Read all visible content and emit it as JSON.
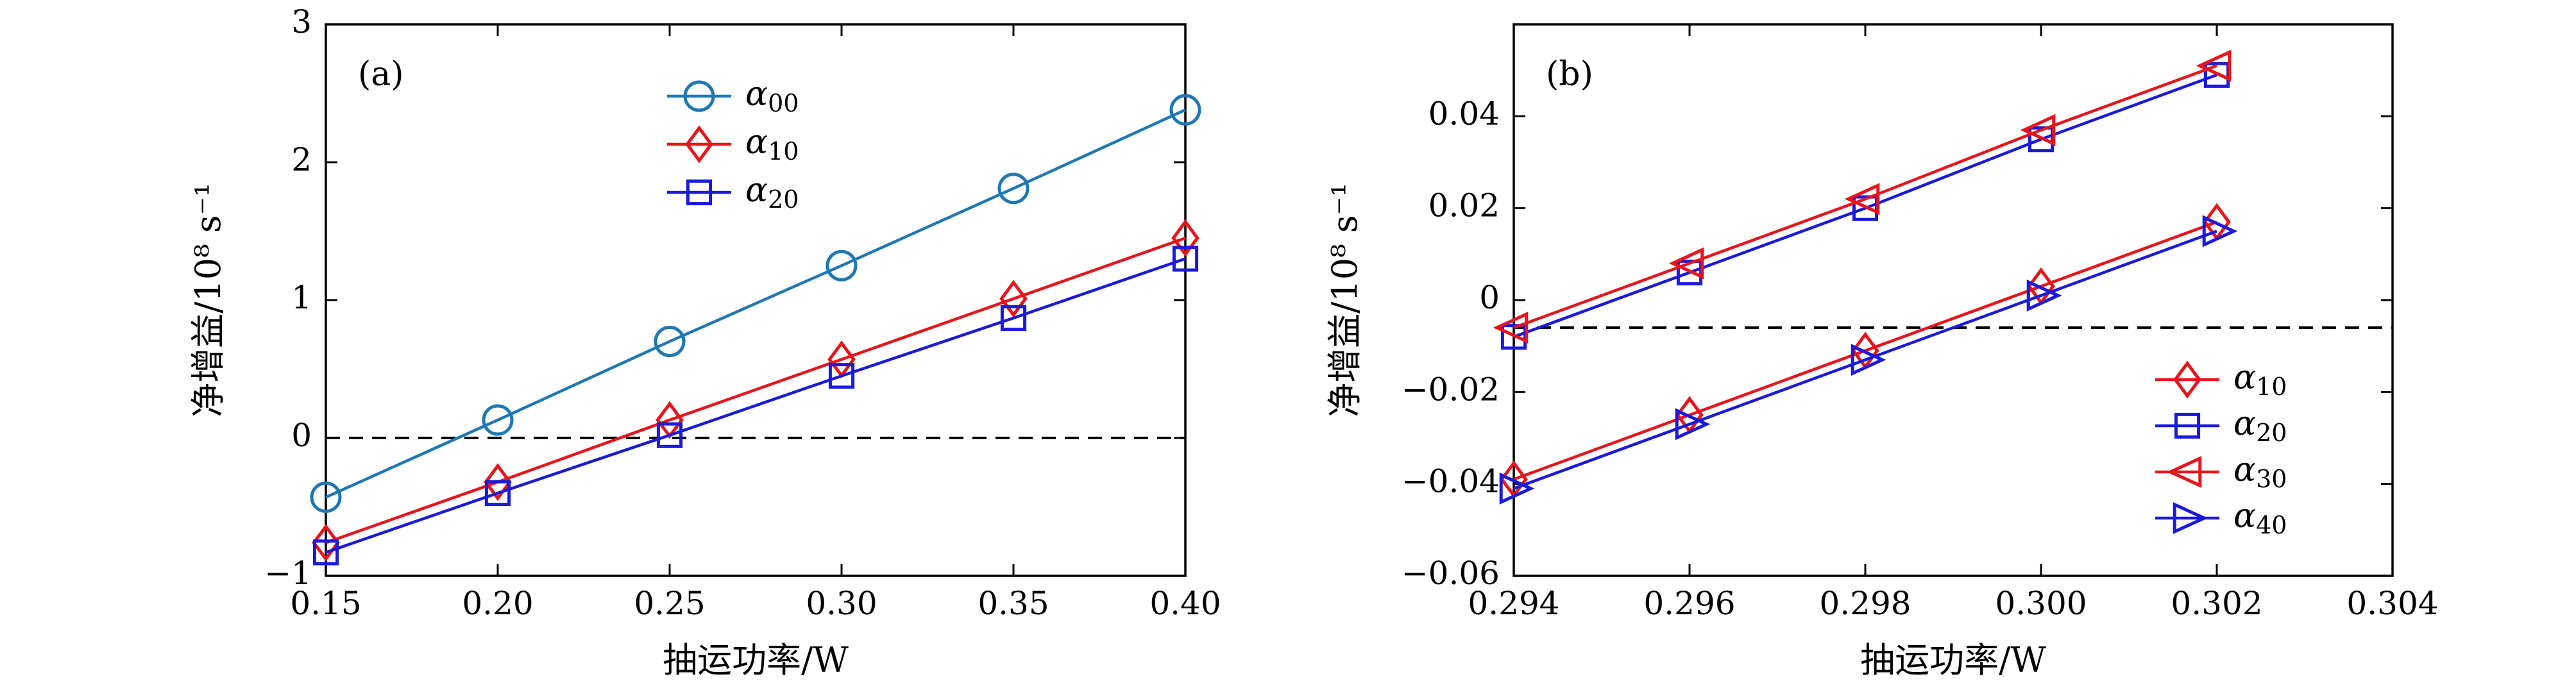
{
  "chart_data": [
    {
      "type": "line",
      "panel_label": "(a)",
      "xlabel": "抽运功率/W",
      "ylabel": "净增益/10⁸ s⁻¹",
      "xlim": [
        0.15,
        0.4
      ],
      "ylim": [
        -1,
        3
      ],
      "xticks": [
        0.15,
        0.2,
        0.25,
        0.3,
        0.35,
        0.4
      ],
      "xtick_labels": [
        "0.15",
        "0.20",
        "0.25",
        "0.30",
        "0.35",
        "0.40"
      ],
      "yticks": [
        -1,
        0,
        1,
        2,
        3
      ],
      "ytick_labels": [
        "−1",
        "0",
        "1",
        "2",
        "3"
      ],
      "reference_line": {
        "y": 0,
        "style": "dashed"
      },
      "legend_position": "top-center",
      "x": [
        0.15,
        0.2,
        0.25,
        0.3,
        0.35,
        0.4
      ],
      "series": [
        {
          "name": "α",
          "sub": "00",
          "color": "#1f77b4",
          "marker": "circle",
          "values": [
            -0.43,
            0.13,
            0.7,
            1.25,
            1.81,
            2.38
          ]
        },
        {
          "name": "α",
          "sub": "10",
          "color": "#e8141c",
          "marker": "diamond",
          "values": [
            -0.76,
            -0.32,
            0.13,
            0.57,
            1.01,
            1.45
          ]
        },
        {
          "name": "α",
          "sub": "20",
          "color": "#1a1adb",
          "marker": "square",
          "values": [
            -0.83,
            -0.4,
            0.02,
            0.45,
            0.87,
            1.3
          ]
        }
      ]
    },
    {
      "type": "line",
      "panel_label": "(b)",
      "xlabel": "抽运功率/W",
      "ylabel": "净增益/10⁸ s⁻¹",
      "xlim": [
        0.294,
        0.304
      ],
      "ylim": [
        -0.06,
        0.06
      ],
      "xticks": [
        0.294,
        0.296,
        0.298,
        0.3,
        0.302,
        0.304
      ],
      "xtick_labels": [
        "0.294",
        "0.296",
        "0.298",
        "0.300",
        "0.302",
        "0.304"
      ],
      "yticks": [
        -0.06,
        -0.04,
        -0.02,
        0,
        0.02,
        0.04
      ],
      "ytick_labels": [
        "−0.06",
        "−0.04",
        "−0.02",
        "0",
        "0.02",
        "0.04"
      ],
      "reference_line": {
        "y": -0.006,
        "style": "dashed"
      },
      "legend_position": "bottom-right",
      "x": [
        0.294,
        0.296,
        0.298,
        0.3,
        0.302
      ],
      "series": [
        {
          "name": "α",
          "sub": "10",
          "color": "#e8141c",
          "marker": "diamond",
          "values": [
            -0.039,
            -0.025,
            -0.011,
            0.003,
            0.017
          ]
        },
        {
          "name": "α",
          "sub": "20",
          "color": "#1a1adb",
          "marker": "square",
          "values": [
            -0.008,
            0.006,
            0.02,
            0.035,
            0.049
          ]
        },
        {
          "name": "α",
          "sub": "30",
          "color": "#e8141c",
          "marker": "triangle-left",
          "values": [
            -0.006,
            0.008,
            0.022,
            0.037,
            0.051
          ]
        },
        {
          "name": "α",
          "sub": "40",
          "color": "#1a1adb",
          "marker": "triangle-right",
          "values": [
            -0.041,
            -0.027,
            -0.013,
            0.001,
            0.015
          ]
        }
      ]
    }
  ]
}
